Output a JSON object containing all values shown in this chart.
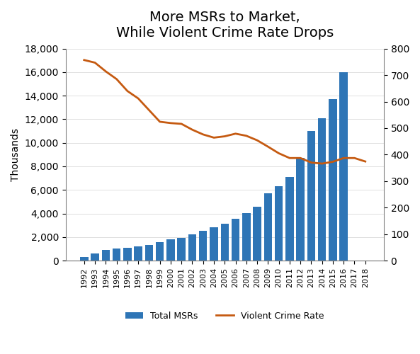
{
  "title": "More MSRs to Market,\nWhile Violent Crime Rate Drops",
  "years": [
    1992,
    1993,
    1994,
    1995,
    1996,
    1997,
    1998,
    1999,
    2000,
    2001,
    2002,
    2003,
    2004,
    2005,
    2006,
    2007,
    2008,
    2009,
    2010,
    2011,
    2012,
    2013,
    2014,
    2015,
    2016,
    2017,
    2018
  ],
  "msr_values": [
    300,
    600,
    900,
    1000,
    1100,
    1200,
    1350,
    1550,
    1800,
    1950,
    2200,
    2500,
    2800,
    3150,
    3550,
    4050,
    4600,
    5700,
    6300,
    7100,
    8700,
    11000,
    12100,
    13700,
    16000,
    0,
    0
  ],
  "crime_rate": [
    757,
    747,
    714,
    685,
    640,
    612,
    568,
    524,
    519,
    516,
    494,
    476,
    464,
    469,
    479,
    471,
    454,
    430,
    405,
    387,
    387,
    370,
    366,
    373,
    387,
    387,
    374
  ],
  "bar_color": "#2E75B6",
  "line_color": "#C55A11",
  "ylabel_left": "Thousands",
  "ylim_left": [
    0,
    18000
  ],
  "ylim_right": [
    0,
    800
  ],
  "yticks_left": [
    0,
    2000,
    4000,
    6000,
    8000,
    10000,
    12000,
    14000,
    16000,
    18000
  ],
  "yticks_right": [
    0,
    100,
    200,
    300,
    400,
    500,
    600,
    700,
    800
  ],
  "legend_labels": [
    "Total MSRs",
    "Violent Crime Rate"
  ],
  "background_color": "#ffffff",
  "title_fontsize": 14
}
